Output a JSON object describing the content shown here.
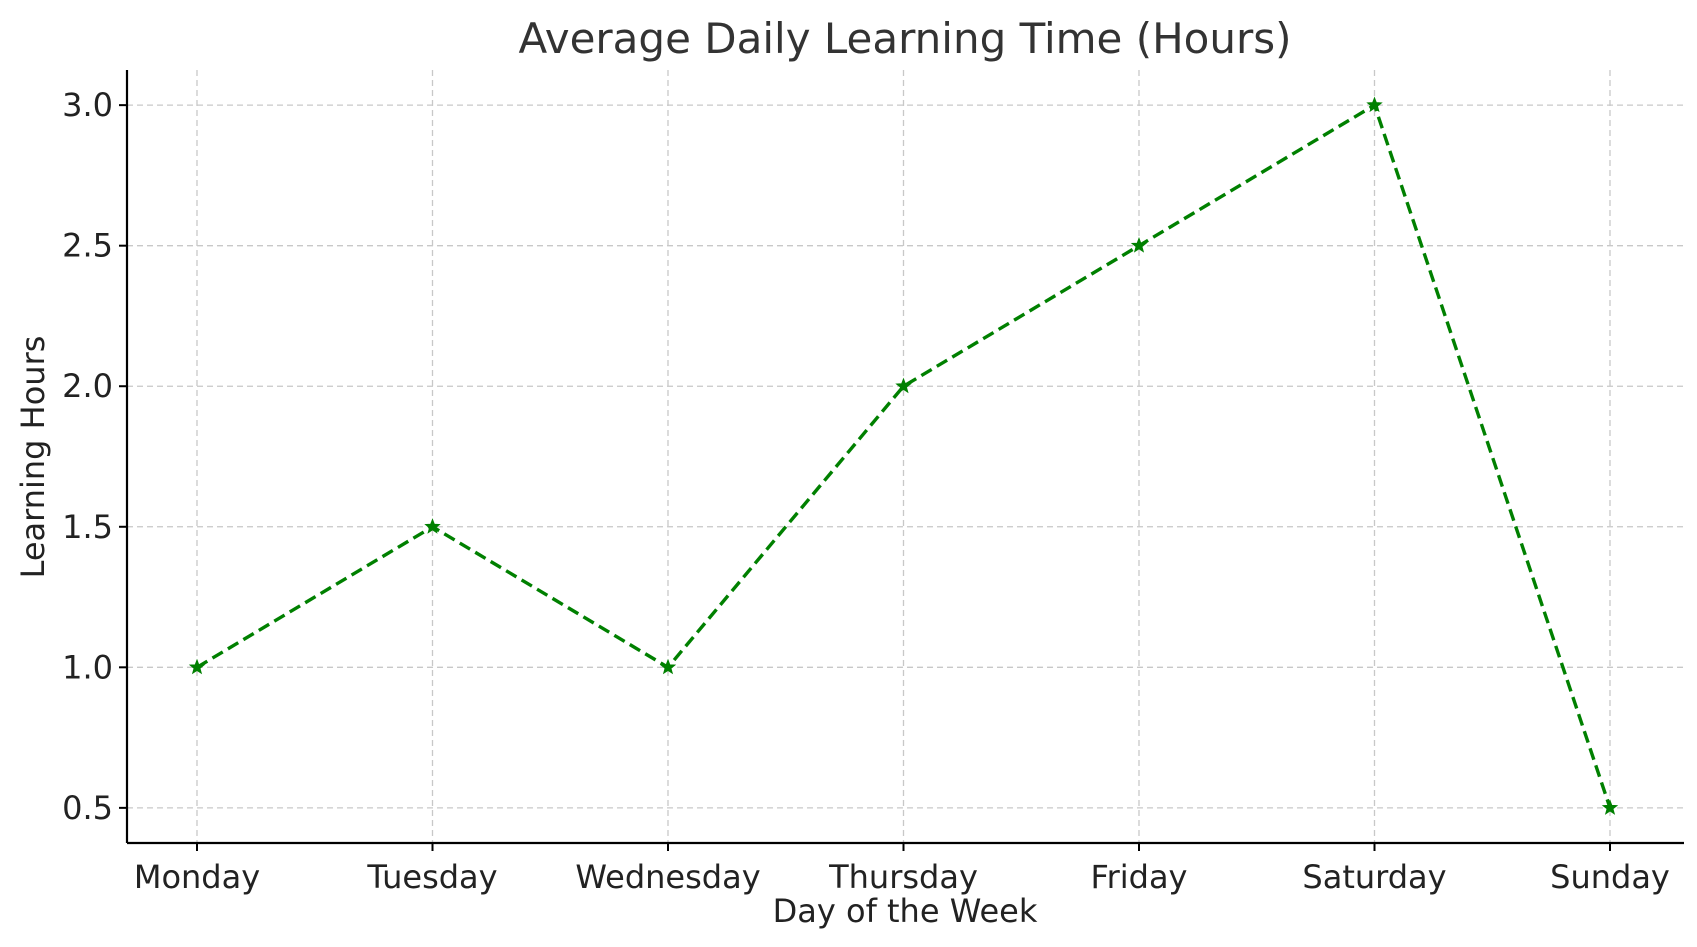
{
  "chart_data": {
    "type": "line",
    "title": "Average Daily Learning Time (Hours)",
    "xlabel": "Day of the Week",
    "ylabel": "Learning Hours",
    "categories": [
      "Monday",
      "Tuesday",
      "Wednesday",
      "Thursday",
      "Friday",
      "Saturday",
      "Sunday"
    ],
    "series": [
      {
        "values": [
          1.0,
          1.5,
          1.0,
          2.0,
          2.5,
          3.0,
          0.5
        ],
        "color": "#008000",
        "line_style": "dashed",
        "marker": "star"
      }
    ],
    "yticks": [
      "0.5",
      "1.0",
      "1.5",
      "2.0",
      "2.5",
      "3.0"
    ],
    "ylim": [
      0.375,
      3.125
    ],
    "grid": true,
    "legend": "none"
  }
}
